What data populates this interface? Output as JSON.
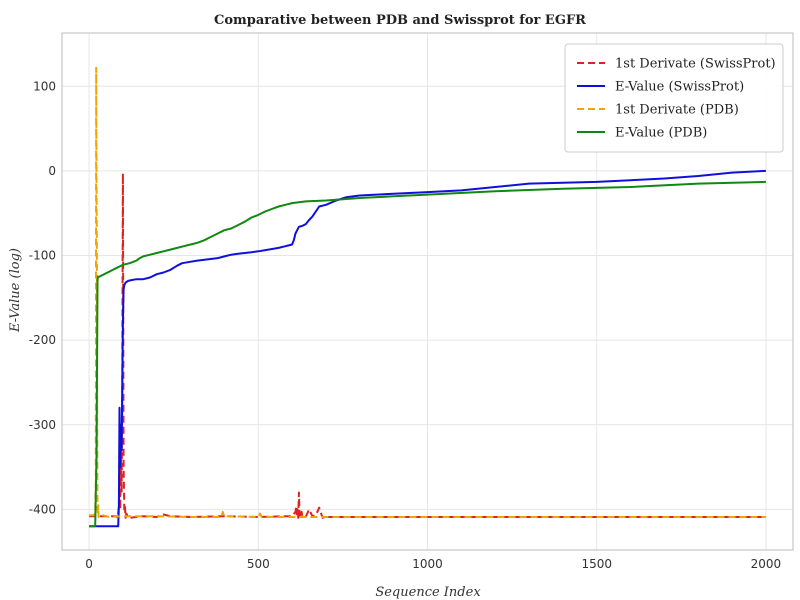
{
  "chart_data": {
    "type": "line",
    "title": "Comparative between PDB and Swissprot for EGFR",
    "xlabel": "Sequence Index",
    "ylabel": "E-Value (log)",
    "xlim": [
      -80,
      2080
    ],
    "ylim": [
      -448,
      163
    ],
    "xticks": [
      0,
      500,
      1000,
      1500,
      2000
    ],
    "yticks": [
      100,
      0,
      -100,
      -200,
      -300,
      -400
    ],
    "grid": true,
    "legend_position": "top-right",
    "series": [
      {
        "name": "1st Derivate (SwissProt)",
        "color": "#dd2222",
        "dash": "dashed",
        "x": [
          0,
          80,
          85,
          88,
          90,
          92,
          94,
          96,
          98,
          100,
          102,
          104,
          106,
          108,
          110,
          115,
          120,
          160,
          200,
          220,
          240,
          300,
          400,
          500,
          580,
          600,
          610,
          612,
          614,
          616,
          618,
          620,
          622,
          624,
          626,
          628,
          630,
          640,
          650,
          660,
          670,
          680,
          690,
          700,
          800,
          1000,
          1500,
          2000
        ],
        "y": [
          -408,
          -408,
          -410,
          -395,
          -320,
          -400,
          -330,
          -380,
          -280,
          -3,
          -350,
          -400,
          -395,
          -410,
          -405,
          -408,
          -410,
          -408,
          -409,
          -406,
          -408,
          -409,
          -408,
          -409,
          -408,
          -408,
          -403,
          -396,
          -408,
          -400,
          -410,
          -380,
          -405,
          -410,
          -408,
          -403,
          -408,
          -409,
          -400,
          -408,
          -407,
          -398,
          -410,
          -409,
          -409,
          -409,
          -409,
          -409
        ]
      },
      {
        "name": "E-Value (SwissProt)",
        "color": "#1010dd",
        "dash": "solid",
        "x": [
          0,
          5,
          86,
          88,
          90,
          92,
          94,
          96,
          98,
          100,
          102,
          104,
          108,
          115,
          125,
          140,
          160,
          180,
          200,
          220,
          240,
          260,
          275,
          290,
          320,
          380,
          400,
          420,
          440,
          460,
          480,
          500,
          530,
          560,
          580,
          590,
          600,
          605,
          610,
          620,
          630,
          640,
          650,
          660,
          680,
          700,
          730,
          760,
          800,
          850,
          900,
          1000,
          1100,
          1200,
          1300,
          1400,
          1500,
          1600,
          1700,
          1800,
          1900,
          2000
        ],
        "y": [
          -420,
          -420,
          -420,
          -395,
          -280,
          -350,
          -300,
          -330,
          -260,
          -180,
          -140,
          -135,
          -132,
          -130,
          -129,
          -128,
          -128,
          -126,
          -122,
          -120,
          -117,
          -112,
          -109,
          -108,
          -106,
          -103,
          -101,
          -99,
          -98,
          -97,
          -96,
          -95,
          -93,
          -91,
          -89,
          -88,
          -87,
          -82,
          -74,
          -66,
          -65,
          -63,
          -58,
          -54,
          -42,
          -40,
          -35,
          -31,
          -29,
          -28,
          -27,
          -25,
          -23,
          -19,
          -15,
          -14,
          -13,
          -11,
          -9,
          -6,
          -2,
          0
        ]
      },
      {
        "name": "1st Derivate (PDB)",
        "color": "#f0a500",
        "dash": "dashed",
        "x": [
          0,
          15,
          18,
          20,
          21,
          22,
          23,
          24,
          25,
          26,
          27,
          28,
          30,
          40,
          60,
          100,
          200,
          300,
          390,
          395,
          400,
          410,
          500,
          505,
          510,
          600,
          1000,
          1500,
          2000
        ],
        "y": [
          -407,
          -407,
          -402,
          -370,
          122,
          -15,
          -100,
          -300,
          -400,
          -405,
          -395,
          -409,
          -407,
          -407,
          -409,
          -408,
          -408,
          -409,
          -409,
          -403,
          -409,
          -408,
          -409,
          -405,
          -409,
          -409,
          -409,
          -409,
          -409
        ]
      },
      {
        "name": "E-Value (PDB)",
        "color": "#118811",
        "dash": "solid",
        "x": [
          0,
          18,
          20,
          22,
          24,
          25,
          26,
          28,
          30,
          40,
          50,
          60,
          70,
          80,
          90,
          100,
          120,
          140,
          150,
          160,
          180,
          200,
          220,
          240,
          260,
          280,
          300,
          320,
          340,
          360,
          380,
          400,
          420,
          440,
          460,
          480,
          500,
          520,
          540,
          560,
          580,
          600,
          640,
          700,
          800,
          900,
          1000,
          1200,
          1400,
          1600,
          1800,
          2000
        ],
        "y": [
          -420,
          -420,
          -380,
          -340,
          -200,
          -130,
          -125,
          -125,
          -125,
          -123,
          -121,
          -119,
          -117,
          -115,
          -113,
          -111,
          -109,
          -106,
          -103,
          -101,
          -99,
          -97,
          -95,
          -93,
          -91,
          -89,
          -87,
          -85,
          -82,
          -78,
          -74,
          -70,
          -68,
          -64,
          -60,
          -55,
          -52,
          -48,
          -45,
          -42,
          -40,
          -38,
          -36,
          -35,
          -32,
          -30,
          -28,
          -24,
          -21,
          -19,
          -15,
          -13
        ]
      }
    ]
  }
}
